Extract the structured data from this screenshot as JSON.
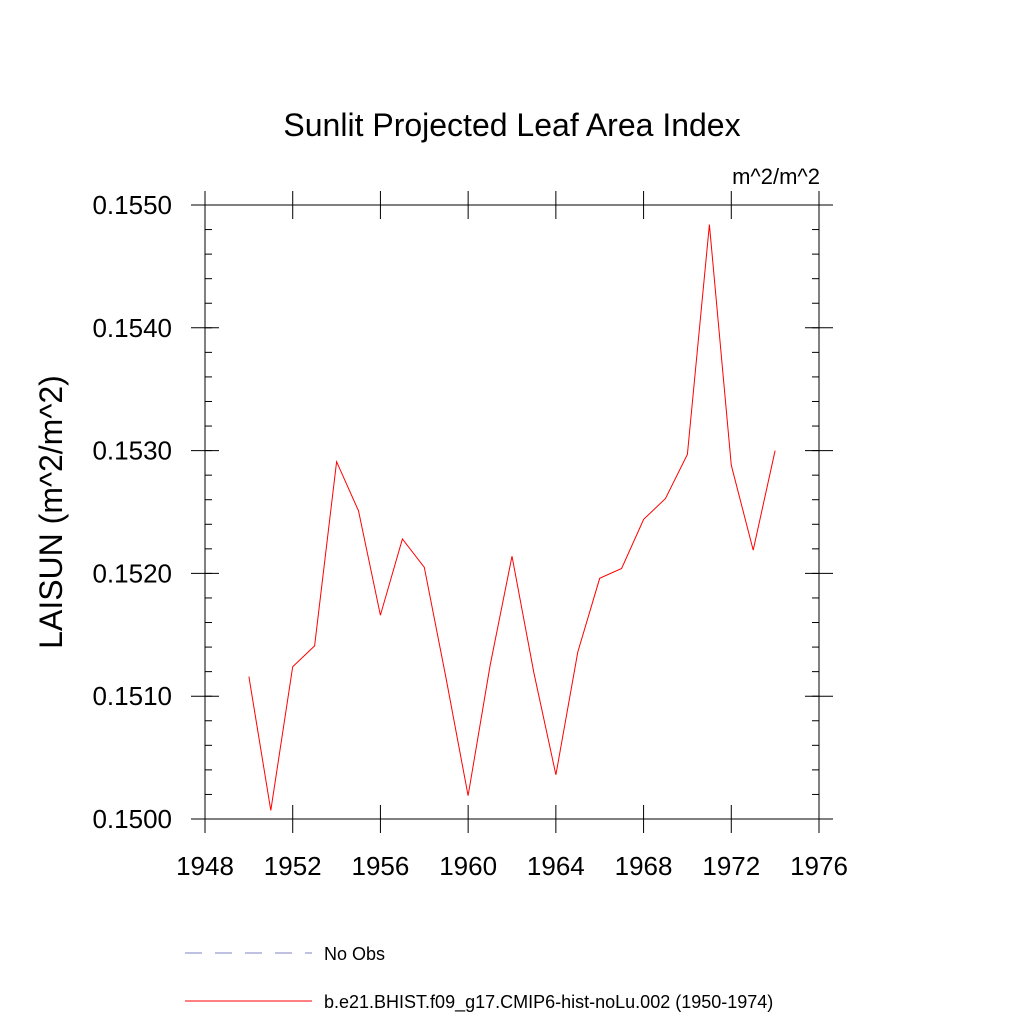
{
  "chart_data": {
    "type": "line",
    "title": "Sunlit Projected Leaf Area Index",
    "units_label": "m^2/m^2",
    "ylabel": "LAISUN  (m^2/m^2)",
    "xlabel": "",
    "xlim": [
      1948,
      1976
    ],
    "ylim": [
      0.15,
      0.155
    ],
    "x_ticks": [
      1948,
      1952,
      1956,
      1960,
      1964,
      1968,
      1972,
      1976
    ],
    "x_tick_labels": [
      "1948",
      "1952",
      "1956",
      "1960",
      "1964",
      "1968",
      "1972",
      "1976"
    ],
    "y_ticks": [
      0.15,
      0.151,
      0.152,
      0.153,
      0.154,
      0.155
    ],
    "y_tick_labels": [
      "0.1500",
      "0.1510",
      "0.1520",
      "0.1530",
      "0.1540",
      "0.1550"
    ],
    "grid": false,
    "legend_position": "bottom",
    "series": [
      {
        "name": "b.e21.BHIST.f09_g17.CMIP6-hist-noLu.002 (1950-1974)",
        "color": "#ff0000",
        "style": "solid",
        "x": [
          1950,
          1951,
          1952,
          1953,
          1954,
          1955,
          1956,
          1957,
          1958,
          1959,
          1960,
          1961,
          1962,
          1963,
          1964,
          1965,
          1966,
          1967,
          1968,
          1969,
          1970,
          1971,
          1972,
          1973,
          1974
        ],
        "y": [
          0.15116,
          0.15007,
          0.15124,
          0.15141,
          0.15291,
          0.15251,
          0.15166,
          0.15228,
          0.15205,
          0.15114,
          0.15019,
          0.15125,
          0.15214,
          0.15119,
          0.15036,
          0.15136,
          0.15196,
          0.15204,
          0.15244,
          0.15261,
          0.15297,
          0.15484,
          0.15288,
          0.15219,
          0.153
        ]
      }
    ],
    "legend": [
      {
        "label": "No Obs",
        "color": "#8080c0",
        "style": "dashed"
      },
      {
        "label": "b.e21.BHIST.f09_g17.CMIP6-hist-noLu.002 (1950-1974)",
        "color": "#ff0000",
        "style": "solid"
      }
    ]
  }
}
